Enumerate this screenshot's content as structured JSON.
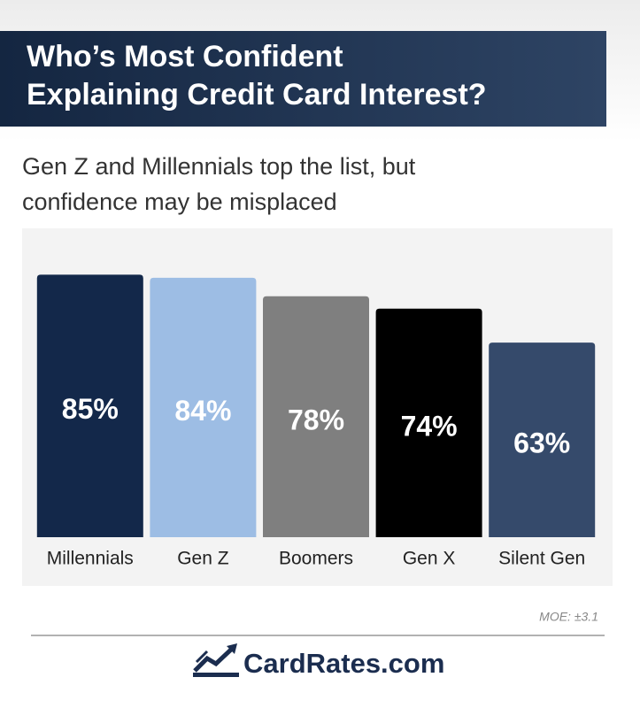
{
  "chart_data": {
    "type": "bar",
    "title": [
      "Who’s Most Confident",
      "Explaining Credit Card Interest?"
    ],
    "subtitle": [
      "Gen Z and Millennials top the list, but",
      "confidence may be misplaced"
    ],
    "categories": [
      "Millennials",
      "Gen Z",
      "Boomers",
      "Gen X",
      "Silent Gen"
    ],
    "values": [
      85,
      84,
      78,
      74,
      63
    ],
    "value_labels": [
      "85%",
      "84%",
      "78%",
      "74%",
      "63%"
    ],
    "colors": [
      "#13284a",
      "#9dbde4",
      "#7f7f7f",
      "#000000",
      "#354a6b"
    ],
    "ylim": [
      0,
      100
    ],
    "note": "MOE: ±3.1",
    "brand": "CardRates.com"
  }
}
